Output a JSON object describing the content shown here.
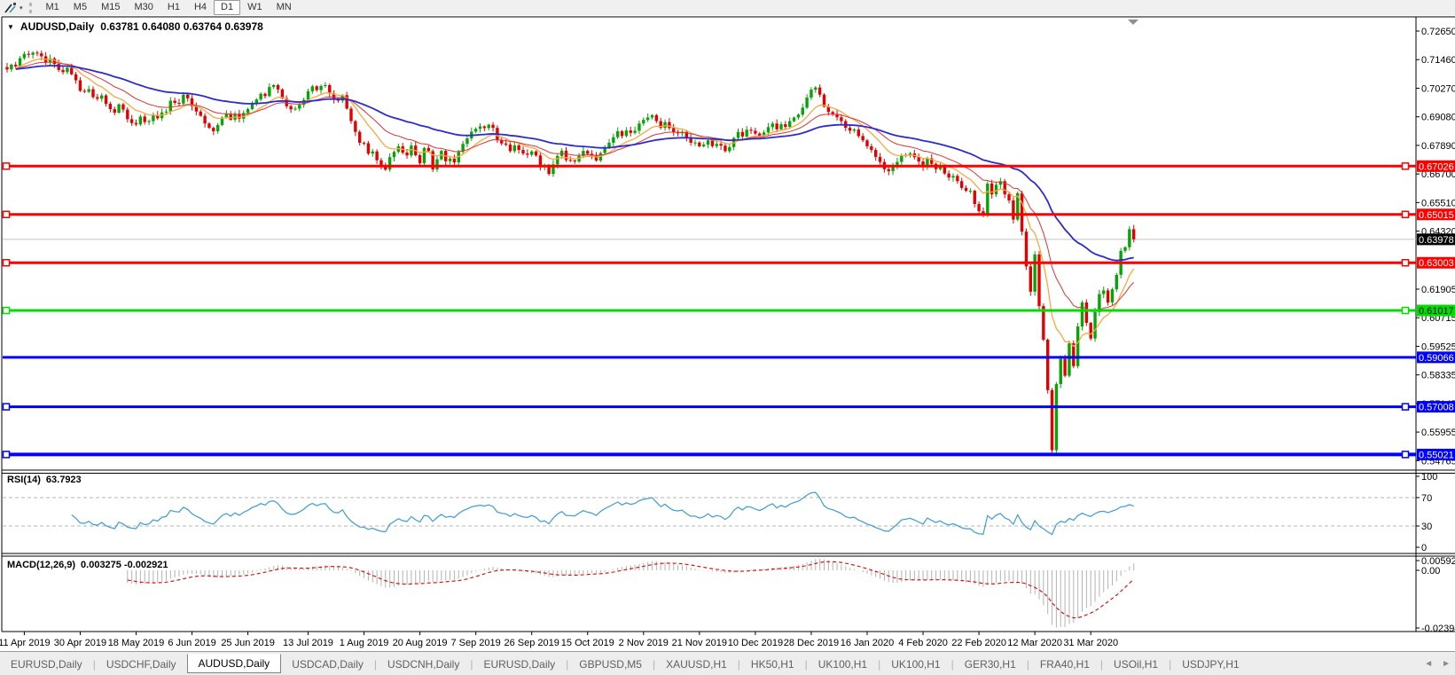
{
  "toolbar": {
    "timeframes": [
      "M1",
      "M5",
      "M15",
      "M30",
      "H1",
      "H4",
      "D1",
      "W1",
      "MN"
    ],
    "active_timeframe": "D1",
    "dropdown_caret": "▾"
  },
  "title": {
    "dropdown": "▼",
    "symbol": "AUDUSD,Daily",
    "ohlc": "0.63781 0.64080 0.63764 0.63978"
  },
  "rsi": {
    "label": "RSI(14)",
    "value": "63.7923",
    "axis": [
      {
        "v": 100,
        "t": "100"
      },
      {
        "v": 70,
        "t": "70"
      },
      {
        "v": 30,
        "t": "30"
      },
      {
        "v": 0,
        "t": "0"
      }
    ],
    "levels": [
      70,
      30
    ],
    "color": "#3d9bd6"
  },
  "macd": {
    "label": "MACD(12,26,9)",
    "value": "0.003275 -0.002921",
    "axis": [
      {
        "v": 0.005923,
        "t": "0.005923"
      },
      {
        "v": 0,
        "t": "0.00"
      },
      {
        "v": -0.023944,
        "t": "-0.023944"
      }
    ],
    "hist_color": "#b2b2b2",
    "signal_color": "#e00000"
  },
  "price_axis_ticks": [
    "0.72650",
    "0.71460",
    "0.70270",
    "0.69080",
    "0.67890",
    "0.66700",
    "0.65510",
    "0.64320",
    "0.61905",
    "0.60715",
    "0.59525",
    "0.58335",
    "0.57145",
    "0.55955",
    "0.54765"
  ],
  "current_price": {
    "value": 0.63978,
    "label": "0.63978",
    "line_color": "#c4c4c4",
    "tag_bg": "#000000",
    "tag_text": "#ffffff"
  },
  "hlines": [
    {
      "price": 0.67026,
      "label": "0.67026",
      "color": "#ff0000",
      "tag_text": "#ffffff",
      "width": 3,
      "squares": true
    },
    {
      "price": 0.65015,
      "label": "0.65015",
      "color": "#ff0000",
      "tag_text": "#ffffff",
      "width": 3,
      "squares": true
    },
    {
      "price": 0.63003,
      "label": "0.63003",
      "color": "#ff0000",
      "tag_text": "#ffffff",
      "width": 3,
      "squares": true
    },
    {
      "price": 0.61017,
      "label": "0.61017",
      "color": "#00dd00",
      "tag_text": "#000000",
      "width": 3,
      "squares": true
    },
    {
      "price": 0.59066,
      "label": "0.59066",
      "color": "#0000ff",
      "tag_text": "#ffffff",
      "width": 3,
      "squares": false
    },
    {
      "price": 0.57008,
      "label": "0.57008",
      "color": "#0000ff",
      "tag_text": "#ffffff",
      "width": 3,
      "squares": true
    },
    {
      "price": 0.55021,
      "label": "0.55021",
      "color": "#0000ff",
      "tag_text": "#ffffff",
      "width": 4,
      "squares": true
    }
  ],
  "dates": [
    {
      "t": "11 Apr 2019",
      "i": 4
    },
    {
      "t": "30 Apr 2019",
      "i": 17
    },
    {
      "t": "18 May 2019",
      "i": 30
    },
    {
      "t": "6 Jun 2019",
      "i": 43
    },
    {
      "t": "25 Jun 2019",
      "i": 56
    },
    {
      "t": "13 Jul 2019",
      "i": 70
    },
    {
      "t": "1 Aug 2019",
      "i": 83
    },
    {
      "t": "20 Aug 2019",
      "i": 96
    },
    {
      "t": "7 Sep 2019",
      "i": 109
    },
    {
      "t": "26 Sep 2019",
      "i": 122
    },
    {
      "t": "15 Oct 2019",
      "i": 135
    },
    {
      "t": "2 Nov 2019",
      "i": 148
    },
    {
      "t": "21 Nov 2019",
      "i": 161
    },
    {
      "t": "10 Dec 2019",
      "i": 174
    },
    {
      "t": "28 Dec 2019",
      "i": 187
    },
    {
      "t": "16 Jan 2020",
      "i": 200
    },
    {
      "t": "4 Feb 2020",
      "i": 213
    },
    {
      "t": "22 Feb 2020",
      "i": 226
    },
    {
      "t": "12 Mar 2020",
      "i": 239
    },
    {
      "t": "31 Mar 2020",
      "i": 252
    }
  ],
  "tabs": {
    "active": 2,
    "items": [
      "EURUSD,Daily",
      "USDCHF,Daily",
      "AUDUSD,Daily",
      "USDCAD,Daily",
      "USDCNH,Daily",
      "EURUSD,Daily",
      "GBPUSD,M5",
      "XAUUSD,H1",
      "HK50,H1",
      "UK100,H1",
      "UK100,H1",
      "GER30,H1",
      "FRA40,H1",
      "USOil,H1",
      "USDJPY,H1"
    ],
    "nav_prev": "◄",
    "nav_next": "►"
  },
  "chart_data": {
    "type": "candlestick",
    "symbol": "AUDUSD",
    "period": "Daily",
    "bull_color": "#07a307",
    "bear_color": "#e30000",
    "closes": [
      0.7105,
      0.7125,
      0.7118,
      0.7152,
      0.717,
      0.7166,
      0.7175,
      0.7172,
      0.716,
      0.7135,
      0.7151,
      0.7128,
      0.7103,
      0.7094,
      0.7112,
      0.7085,
      0.706,
      0.7016,
      0.7012,
      0.7023,
      0.699,
      0.6983,
      0.6997,
      0.6962,
      0.694,
      0.6925,
      0.696,
      0.6938,
      0.6898,
      0.6882,
      0.6876,
      0.6909,
      0.6886,
      0.689,
      0.6914,
      0.6902,
      0.6926,
      0.693,
      0.6975,
      0.6966,
      0.6963,
      0.7,
      0.6985,
      0.6952,
      0.693,
      0.6912,
      0.688,
      0.6862,
      0.6848,
      0.6874,
      0.6905,
      0.692,
      0.6896,
      0.6921,
      0.69,
      0.6924,
      0.694,
      0.6965,
      0.698,
      0.7004,
      0.6994,
      0.7032,
      0.704,
      0.7022,
      0.6985,
      0.6952,
      0.6939,
      0.6942,
      0.6958,
      0.6979,
      0.7014,
      0.7035,
      0.7019,
      0.7036,
      0.704,
      0.7005,
      0.6979,
      0.6975,
      0.6998,
      0.6942,
      0.689,
      0.6845,
      0.68,
      0.6798,
      0.6755,
      0.6764,
      0.6727,
      0.67,
      0.6688,
      0.674,
      0.6762,
      0.6785,
      0.6759,
      0.6747,
      0.6788,
      0.6748,
      0.6715,
      0.6778,
      0.6765,
      0.6689,
      0.6731,
      0.6766,
      0.6723,
      0.6734,
      0.6718,
      0.6762,
      0.6795,
      0.6818,
      0.6846,
      0.6858,
      0.6868,
      0.6861,
      0.6875,
      0.6862,
      0.681,
      0.6797,
      0.6792,
      0.6765,
      0.6789,
      0.677,
      0.6755,
      0.675,
      0.6764,
      0.6747,
      0.67,
      0.6705,
      0.667,
      0.671,
      0.6745,
      0.6767,
      0.6728,
      0.6726,
      0.6722,
      0.6745,
      0.6766,
      0.6754,
      0.6746,
      0.6726,
      0.6757,
      0.678,
      0.68,
      0.6823,
      0.6848,
      0.6828,
      0.6851,
      0.6841,
      0.685,
      0.688,
      0.6895,
      0.6905,
      0.6915,
      0.689,
      0.6862,
      0.6886,
      0.6861,
      0.6843,
      0.6839,
      0.6845,
      0.682,
      0.68,
      0.6801,
      0.6785,
      0.6792,
      0.681,
      0.6786,
      0.6795,
      0.6788,
      0.6765,
      0.6782,
      0.682,
      0.6845,
      0.6826,
      0.6854,
      0.685,
      0.6838,
      0.6829,
      0.6843,
      0.6865,
      0.688,
      0.6856,
      0.6877,
      0.6866,
      0.689,
      0.6905,
      0.6917,
      0.6946,
      0.6988,
      0.7021,
      0.703,
      0.7,
      0.695,
      0.6928,
      0.692,
      0.6906,
      0.689,
      0.6862,
      0.685,
      0.6855,
      0.6828,
      0.681,
      0.6785,
      0.677,
      0.6741,
      0.672,
      0.669,
      0.6682,
      0.67,
      0.672,
      0.6745,
      0.675,
      0.6755,
      0.674,
      0.6722,
      0.67,
      0.6735,
      0.6712,
      0.669,
      0.67,
      0.6672,
      0.6655,
      0.6662,
      0.664,
      0.6612,
      0.66,
      0.66,
      0.6545,
      0.6515,
      0.6505,
      0.663,
      0.6585,
      0.6625,
      0.664,
      0.6585,
      0.656,
      0.648,
      0.659,
      0.643,
      0.6285,
      0.618,
      0.6335,
      0.612,
      0.598,
      0.577,
      0.552,
      0.5795,
      0.59,
      0.583,
      0.5965,
      0.587,
      0.6035,
      0.6135,
      0.605,
      0.5985,
      0.6095,
      0.617,
      0.6185,
      0.6135,
      0.619,
      0.625,
      0.635,
      0.6365,
      0.644,
      0.6398
    ],
    "crash": {
      "index": 243,
      "low": 0.551
    },
    "ma_settings": [
      {
        "type": "EMA",
        "period": 10,
        "color": "#ffa640",
        "width": 1.3
      },
      {
        "type": "EMA",
        "period": 20,
        "color": "#e03232",
        "width": 1.0
      },
      {
        "type": "EMA",
        "period": 50,
        "color": "#2b2bd0",
        "width": 1.8
      }
    ],
    "indicators": [
      {
        "name": "RSI",
        "params": [
          14
        ],
        "shown_value": 63.7923
      },
      {
        "name": "MACD",
        "params": [
          12,
          26,
          9
        ],
        "shown_values": [
          0.003275,
          -0.002921
        ]
      }
    ]
  }
}
